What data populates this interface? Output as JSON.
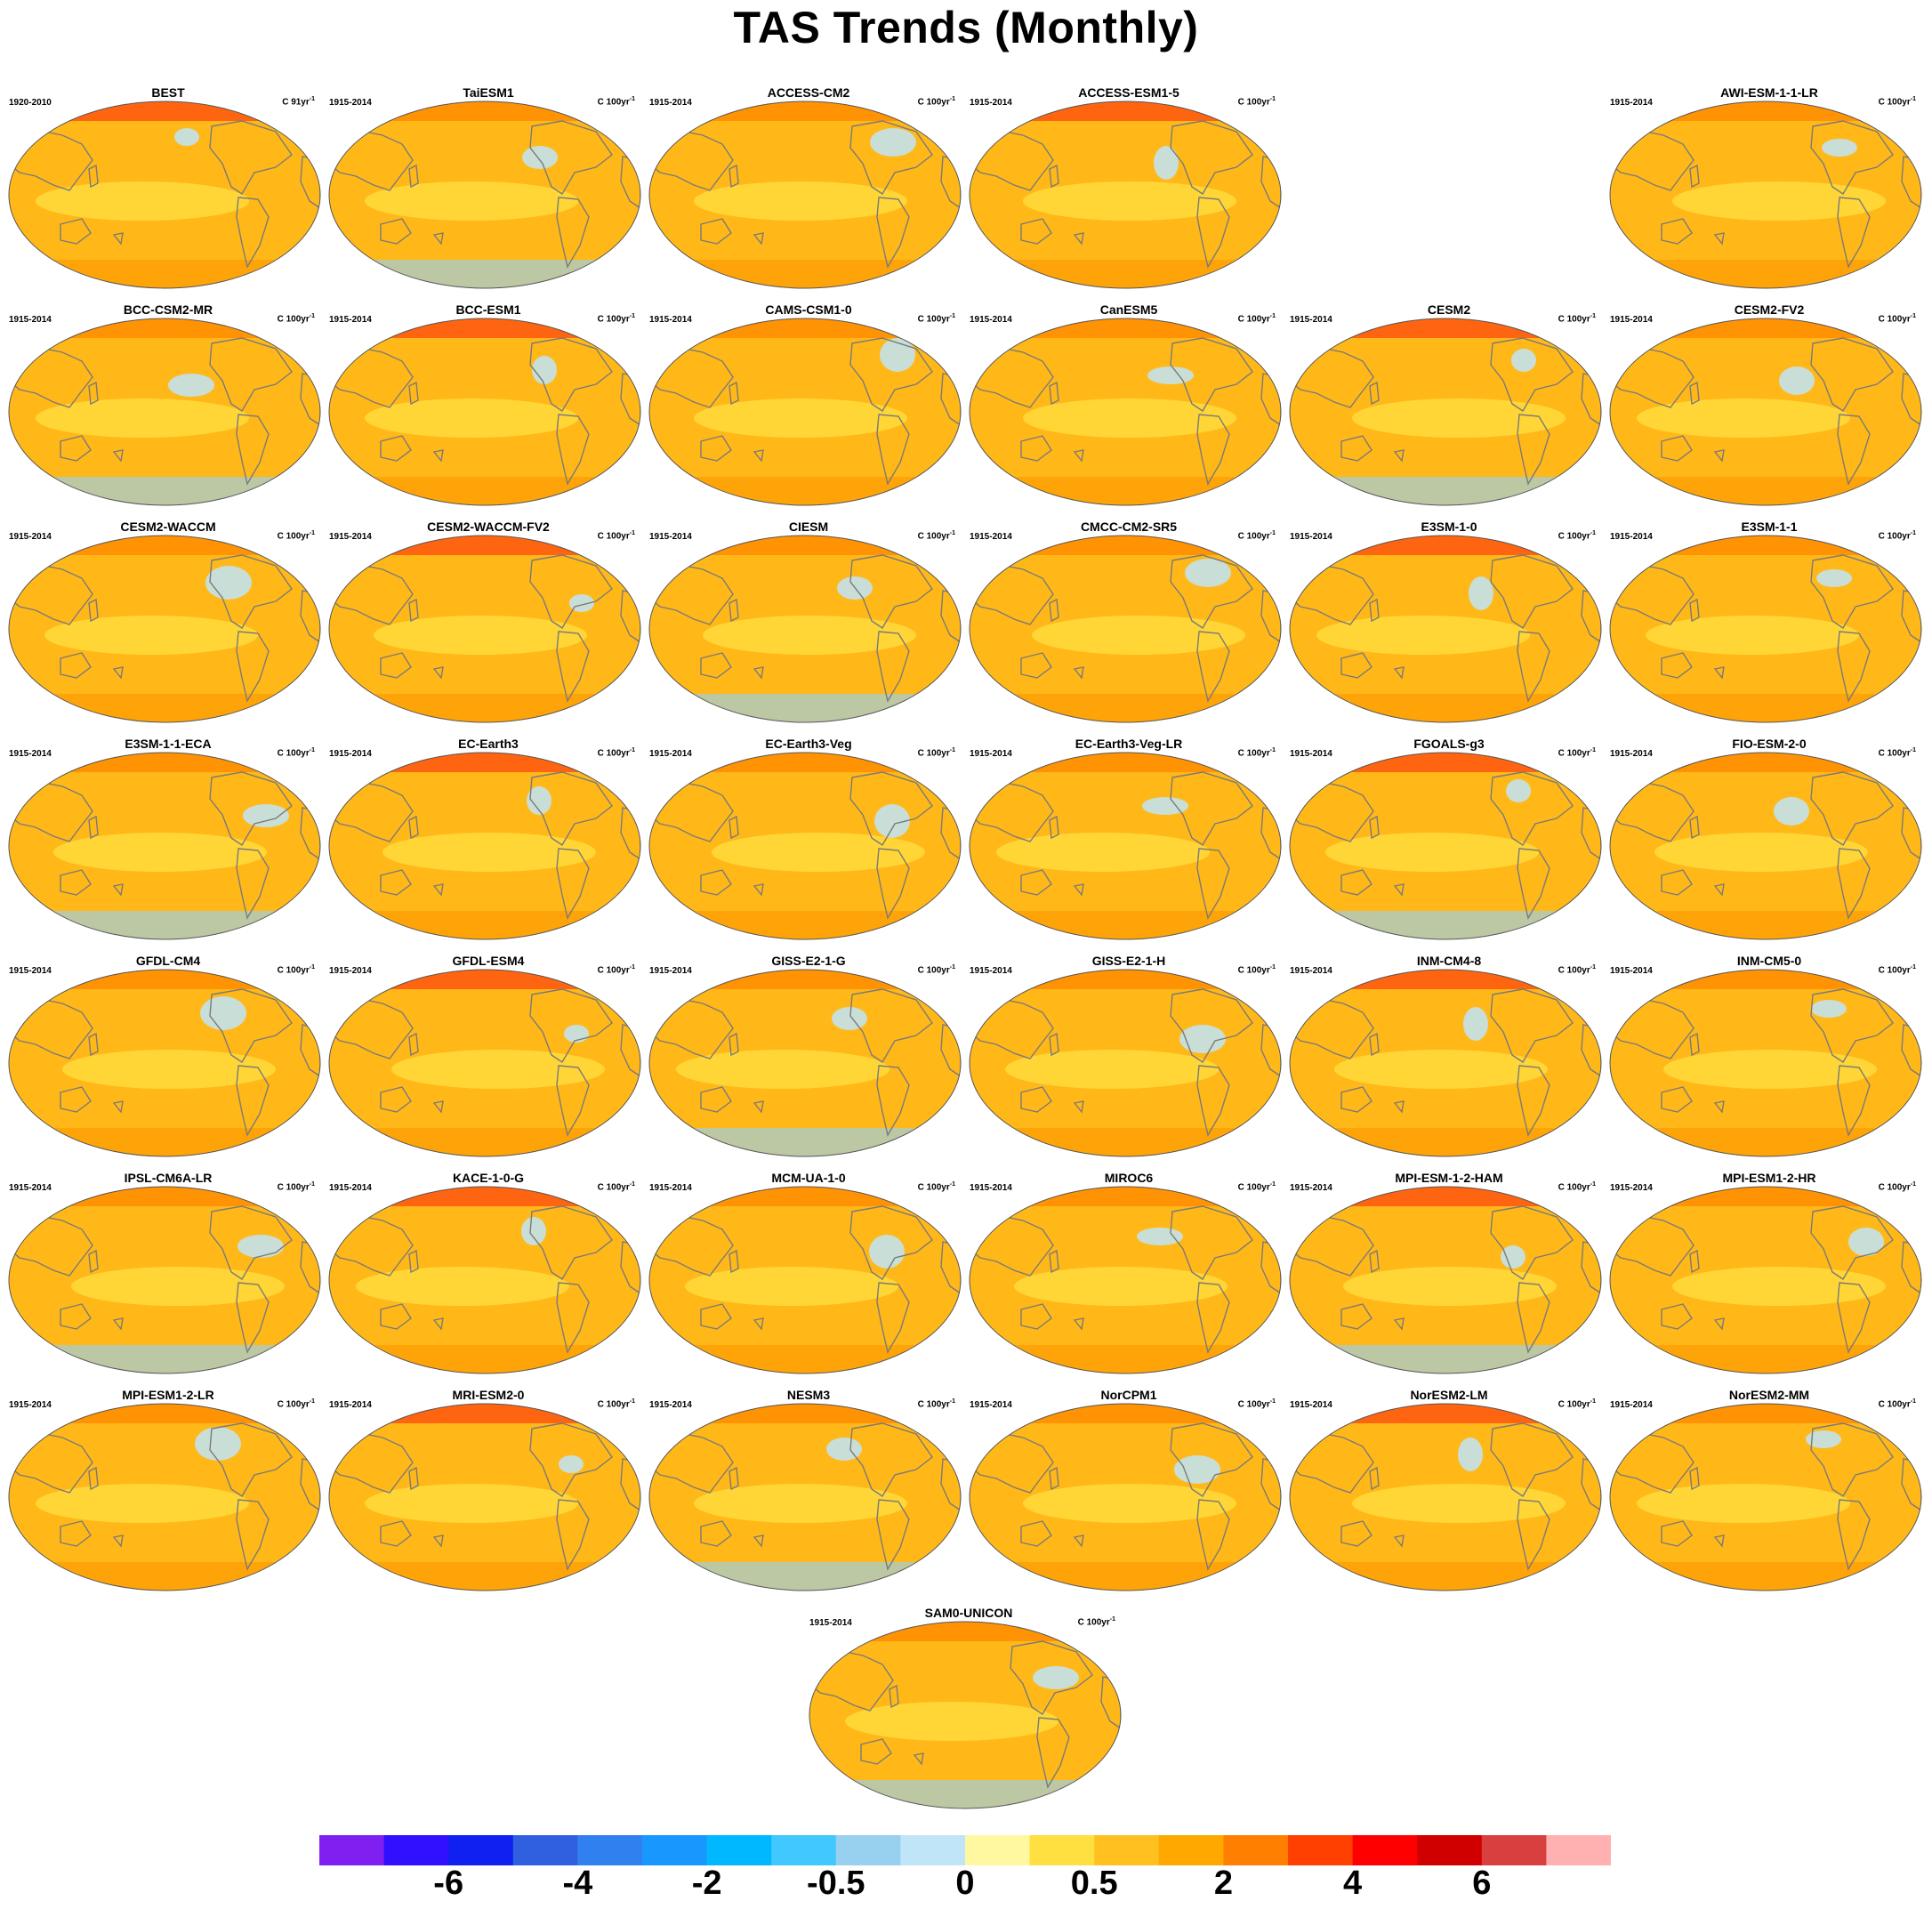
{
  "title": "TAS Trends (Monthly)",
  "panels": [
    {
      "name": "BEST",
      "period": "1920-2010",
      "units": "C 91yr",
      "exp": "-1"
    },
    {
      "name": "TaiESM1",
      "period": "1915-2014",
      "units": "C 100yr",
      "exp": "-1"
    },
    {
      "name": "ACCESS-CM2",
      "period": "1915-2014",
      "units": "C 100yr",
      "exp": "-1"
    },
    {
      "name": "ACCESS-ESM1-5",
      "period": "1915-2014",
      "units": "C 100yr",
      "exp": "-1"
    },
    {
      "name": "AWI-ESM-1-1-LR",
      "period": "1915-2014",
      "units": "C 100yr",
      "exp": "-1"
    },
    {
      "name": "BCC-CSM2-MR",
      "period": "1915-2014",
      "units": "C 100yr",
      "exp": "-1"
    },
    {
      "name": "BCC-ESM1",
      "period": "1915-2014",
      "units": "C 100yr",
      "exp": "-1"
    },
    {
      "name": "CAMS-CSM1-0",
      "period": "1915-2014",
      "units": "C 100yr",
      "exp": "-1"
    },
    {
      "name": "CanESM5",
      "period": "1915-2014",
      "units": "C 100yr",
      "exp": "-1"
    },
    {
      "name": "CESM2",
      "period": "1915-2014",
      "units": "C 100yr",
      "exp": "-1"
    },
    {
      "name": "CESM2-FV2",
      "period": "1915-2014",
      "units": "C 100yr",
      "exp": "-1"
    },
    {
      "name": "CESM2-WACCM",
      "period": "1915-2014",
      "units": "C 100yr",
      "exp": "-1"
    },
    {
      "name": "CESM2-WACCM-FV2",
      "period": "1915-2014",
      "units": "C 100yr",
      "exp": "-1"
    },
    {
      "name": "CIESM",
      "period": "1915-2014",
      "units": "C 100yr",
      "exp": "-1"
    },
    {
      "name": "CMCC-CM2-SR5",
      "period": "1915-2014",
      "units": "C 100yr",
      "exp": "-1"
    },
    {
      "name": "E3SM-1-0",
      "period": "1915-2014",
      "units": "C 100yr",
      "exp": "-1"
    },
    {
      "name": "E3SM-1-1",
      "period": "1915-2014",
      "units": "C 100yr",
      "exp": "-1"
    },
    {
      "name": "E3SM-1-1-ECA",
      "period": "1915-2014",
      "units": "C 100yr",
      "exp": "-1"
    },
    {
      "name": "EC-Earth3",
      "period": "1915-2014",
      "units": "C 100yr",
      "exp": "-1"
    },
    {
      "name": "EC-Earth3-Veg",
      "period": "1915-2014",
      "units": "C 100yr",
      "exp": "-1"
    },
    {
      "name": "EC-Earth3-Veg-LR",
      "period": "1915-2014",
      "units": "C 100yr",
      "exp": "-1"
    },
    {
      "name": "FGOALS-g3",
      "period": "1915-2014",
      "units": "C 100yr",
      "exp": "-1"
    },
    {
      "name": "FIO-ESM-2-0",
      "period": "1915-2014",
      "units": "C 100yr",
      "exp": "-1"
    },
    {
      "name": "GFDL-CM4",
      "period": "1915-2014",
      "units": "C 100yr",
      "exp": "-1"
    },
    {
      "name": "GFDL-ESM4",
      "period": "1915-2014",
      "units": "C 100yr",
      "exp": "-1"
    },
    {
      "name": "GISS-E2-1-G",
      "period": "1915-2014",
      "units": "C 100yr",
      "exp": "-1"
    },
    {
      "name": "GISS-E2-1-H",
      "period": "1915-2014",
      "units": "C 100yr",
      "exp": "-1"
    },
    {
      "name": "INM-CM4-8",
      "period": "1915-2014",
      "units": "C 100yr",
      "exp": "-1"
    },
    {
      "name": "INM-CM5-0",
      "period": "1915-2014",
      "units": "C 100yr",
      "exp": "-1"
    },
    {
      "name": "IPSL-CM6A-LR",
      "period": "1915-2014",
      "units": "C 100yr",
      "exp": "-1"
    },
    {
      "name": "KACE-1-0-G",
      "period": "1915-2014",
      "units": "C 100yr",
      "exp": "-1"
    },
    {
      "name": "MCM-UA-1-0",
      "period": "1915-2014",
      "units": "C 100yr",
      "exp": "-1"
    },
    {
      "name": "MIROC6",
      "period": "1915-2014",
      "units": "C 100yr",
      "exp": "-1"
    },
    {
      "name": "MPI-ESM-1-2-HAM",
      "period": "1915-2014",
      "units": "C 100yr",
      "exp": "-1"
    },
    {
      "name": "MPI-ESM1-2-HR",
      "period": "1915-2014",
      "units": "C 100yr",
      "exp": "-1"
    },
    {
      "name": "MPI-ESM1-2-LR",
      "period": "1915-2014",
      "units": "C 100yr",
      "exp": "-1"
    },
    {
      "name": "MRI-ESM2-0",
      "period": "1915-2014",
      "units": "C 100yr",
      "exp": "-1"
    },
    {
      "name": "NESM3",
      "period": "1915-2014",
      "units": "C 100yr",
      "exp": "-1"
    },
    {
      "name": "NorCPM1",
      "period": "1915-2014",
      "units": "C 100yr",
      "exp": "-1"
    },
    {
      "name": "NorESM2-LM",
      "period": "1915-2014",
      "units": "C 100yr",
      "exp": "-1"
    },
    {
      "name": "NorESM2-MM",
      "period": "1915-2014",
      "units": "C 100yr",
      "exp": "-1"
    },
    {
      "name": "SAM0-UNICON",
      "period": "1915-2014",
      "units": "C 100yr",
      "exp": "-1"
    }
  ],
  "colorbar": {
    "colors": [
      "#8020F0",
      "#3010FF",
      "#1020F0",
      "#3060E0",
      "#3080F0",
      "#1898FF",
      "#00B8FF",
      "#40C8FF",
      "#98D0F0",
      "#C0E4F8",
      "#FFF8A0",
      "#FFE040",
      "#FFC020",
      "#FFA800",
      "#FF8000",
      "#FF4000",
      "#FF0000",
      "#D00000",
      "#D84040",
      "#FFB0B0"
    ],
    "labels": [
      "-6",
      "-4",
      "-2",
      "-0.5",
      "0",
      "0.5",
      "2",
      "4",
      "6"
    ]
  },
  "chart_data": {
    "type": "heatmap",
    "title": "TAS Trends (Monthly)",
    "panel_units": "C 100yr-1",
    "colorbar_levels": [
      "-6",
      "-4",
      "-2",
      "-0.5",
      "0",
      "0.5",
      "2",
      "4",
      "6"
    ],
    "dominant_fill": "#FFC020",
    "panels": [
      "BEST",
      "TaiESM1",
      "ACCESS-CM2",
      "ACCESS-ESM1-5",
      "AWI-ESM-1-1-LR",
      "BCC-CSM2-MR",
      "BCC-ESM1",
      "CAMS-CSM1-0",
      "CanESM5",
      "CESM2",
      "CESM2-FV2",
      "CESM2-WACCM",
      "CESM2-WACCM-FV2",
      "CIESM",
      "CMCC-CM2-SR5",
      "E3SM-1-0",
      "E3SM-1-1",
      "E3SM-1-1-ECA",
      "EC-Earth3",
      "EC-Earth3-Veg",
      "EC-Earth3-Veg-LR",
      "FGOALS-g3",
      "FIO-ESM-2-0",
      "GFDL-CM4",
      "GFDL-ESM4",
      "GISS-E2-1-G",
      "GISS-E2-1-H",
      "INM-CM4-8",
      "INM-CM5-0",
      "IPSL-CM6A-LR",
      "KACE-1-0-G",
      "MCM-UA-1-0",
      "MIROC6",
      "MPI-ESM-1-2-HAM",
      "MPI-ESM1-2-HR",
      "MPI-ESM1-2-LR",
      "MRI-ESM2-0",
      "NESM3",
      "NorCPM1",
      "NorESM2-LM",
      "NorESM2-MM",
      "SAM0-UNICON"
    ]
  }
}
